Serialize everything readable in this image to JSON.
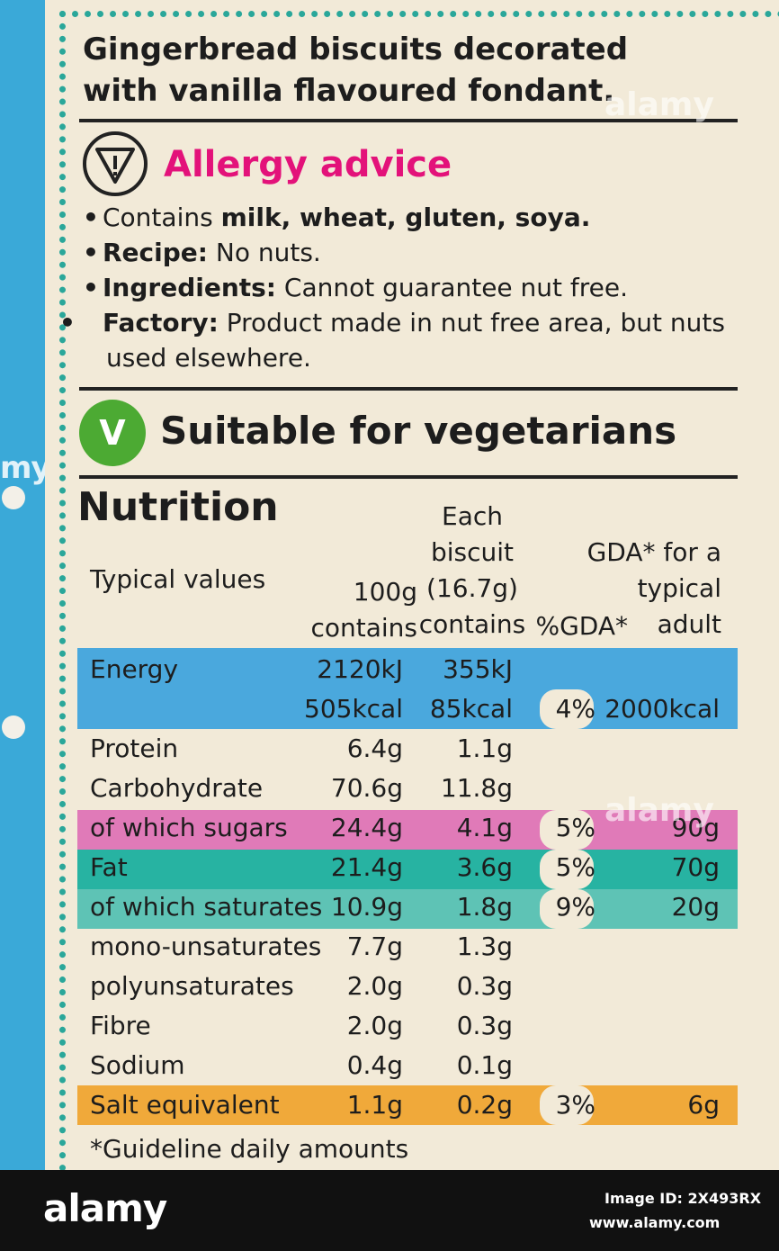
{
  "product": {
    "title_line1": "Gingerbread biscuits decorated",
    "title_line2": "with vanilla flavoured fondant."
  },
  "allergy": {
    "icon": "allergy-warning-icon",
    "title": "Allergy advice",
    "title_color": "#e3127a",
    "contains_prefix": "Contains ",
    "contains_bold": "milk, wheat, gluten, soya.",
    "recipe_label": "Recipe:",
    "recipe_text": " No nuts.",
    "ingredients_label": "Ingredients:",
    "ingredients_text": " Cannot guarantee nut free.",
    "factory_label": "Factory:",
    "factory_text": " Product made in nut free area, but nuts used elsewhere."
  },
  "vegetarian": {
    "icon_letter": "V",
    "icon_color": "#4caa33",
    "text": "Suitable for vegetarians"
  },
  "nutrition": {
    "title": "Nutrition",
    "headers": {
      "typical_values": "Typical values",
      "per100_line1": "100g",
      "per100_line2": "contains",
      "each_line1": "Each",
      "each_line2": "biscuit",
      "each_line3": "(16.7g)",
      "each_line4": "contains",
      "pct_gda": "%GDA*",
      "gda_line1": "GDA* for a",
      "gda_line2": "typical",
      "gda_line3": "adult"
    },
    "energy": {
      "label": "Energy",
      "per100_kj": "2120kJ",
      "each_kj": "355kJ",
      "per100_kcal": "505kcal",
      "each_kcal": "85kcal",
      "pct": "4%",
      "gda": "2000kcal",
      "color": "#4aa8dd"
    },
    "rows": [
      {
        "label": "Protein",
        "per100": "6.4g",
        "each": "1.1g",
        "pct": "",
        "gda": ""
      },
      {
        "label": "Carbohydrate",
        "per100": "70.6g",
        "each": "11.8g",
        "pct": "",
        "gda": ""
      },
      {
        "label": "of which sugars",
        "per100": "24.4g",
        "each": "4.1g",
        "pct": "5%",
        "gda": "90g"
      },
      {
        "label": "Fat",
        "per100": "21.4g",
        "each": "3.6g",
        "pct": "5%",
        "gda": "70g"
      },
      {
        "label": "of which saturates",
        "per100": "10.9g",
        "each": "1.8g",
        "pct": "9%",
        "gda": "20g"
      },
      {
        "label": "mono-unsaturates",
        "per100": "7.7g",
        "each": "1.3g",
        "pct": "",
        "gda": ""
      },
      {
        "label": "polyunsaturates",
        "per100": "2.0g",
        "each": "0.3g",
        "pct": "",
        "gda": ""
      },
      {
        "label": "Fibre",
        "per100": "2.0g",
        "each": "0.3g",
        "pct": "",
        "gda": ""
      },
      {
        "label": "Sodium",
        "per100": "0.4g",
        "each": "0.1g",
        "pct": "",
        "gda": ""
      },
      {
        "label": "Salt equivalent",
        "per100": "1.1g",
        "each": "0.2g",
        "pct": "3%",
        "gda": "6g"
      }
    ],
    "band_colors": {
      "sugars": "#e07ab8",
      "fat": "#27b3a2",
      "saturates": "#5ec3b5",
      "salt": "#f0a93a"
    },
    "footnote": "*Guideline daily amounts"
  },
  "watermark": {
    "logo": "alamy",
    "image_id": "Image ID: 2X493RX",
    "site": "www.alamy.com"
  }
}
